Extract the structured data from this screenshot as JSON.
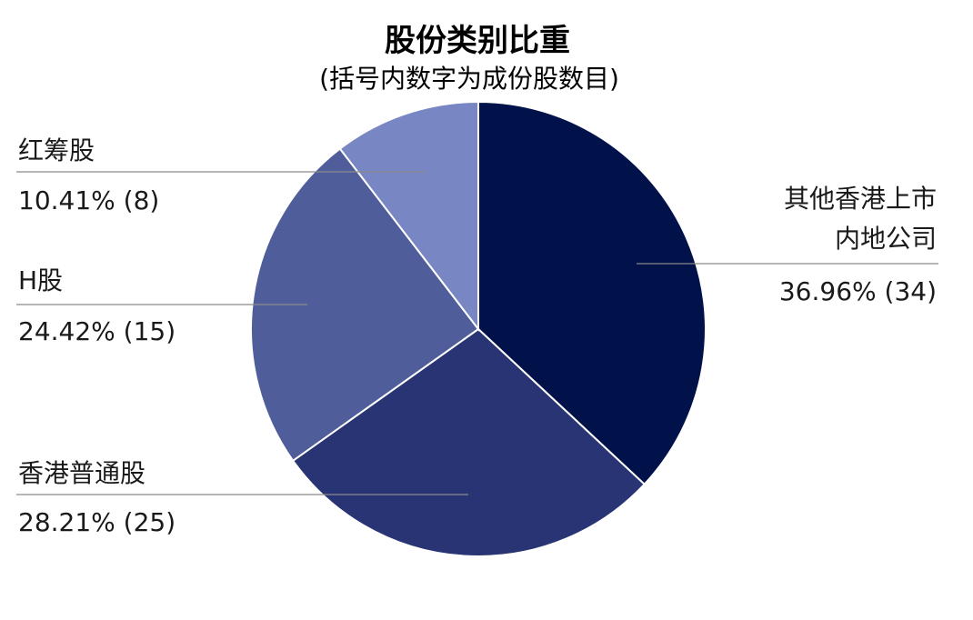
{
  "chart_data": {
    "type": "pie",
    "title": "股份类别比重",
    "subtitle": "(括号内数字为成份股数目)",
    "slices": [
      {
        "name_lines": [
          "其他香港上市",
          "内地公司"
        ],
        "percent": 36.96,
        "value_label": "36.96% (34)",
        "color": "#01124a"
      },
      {
        "name_lines": [
          "香港普通股"
        ],
        "percent": 28.21,
        "value_label": "28.21% (25)",
        "color": "#283473"
      },
      {
        "name_lines": [
          "H股"
        ],
        "percent": 24.42,
        "value_label": "24.42% (15)",
        "color": "#4f5e9b"
      },
      {
        "name_lines": [
          "红筹股"
        ],
        "percent": 10.41,
        "value_label": "10.41% (8)",
        "color": "#7887c4"
      }
    ],
    "start_angle_deg": 0,
    "direction": "clockwise"
  }
}
